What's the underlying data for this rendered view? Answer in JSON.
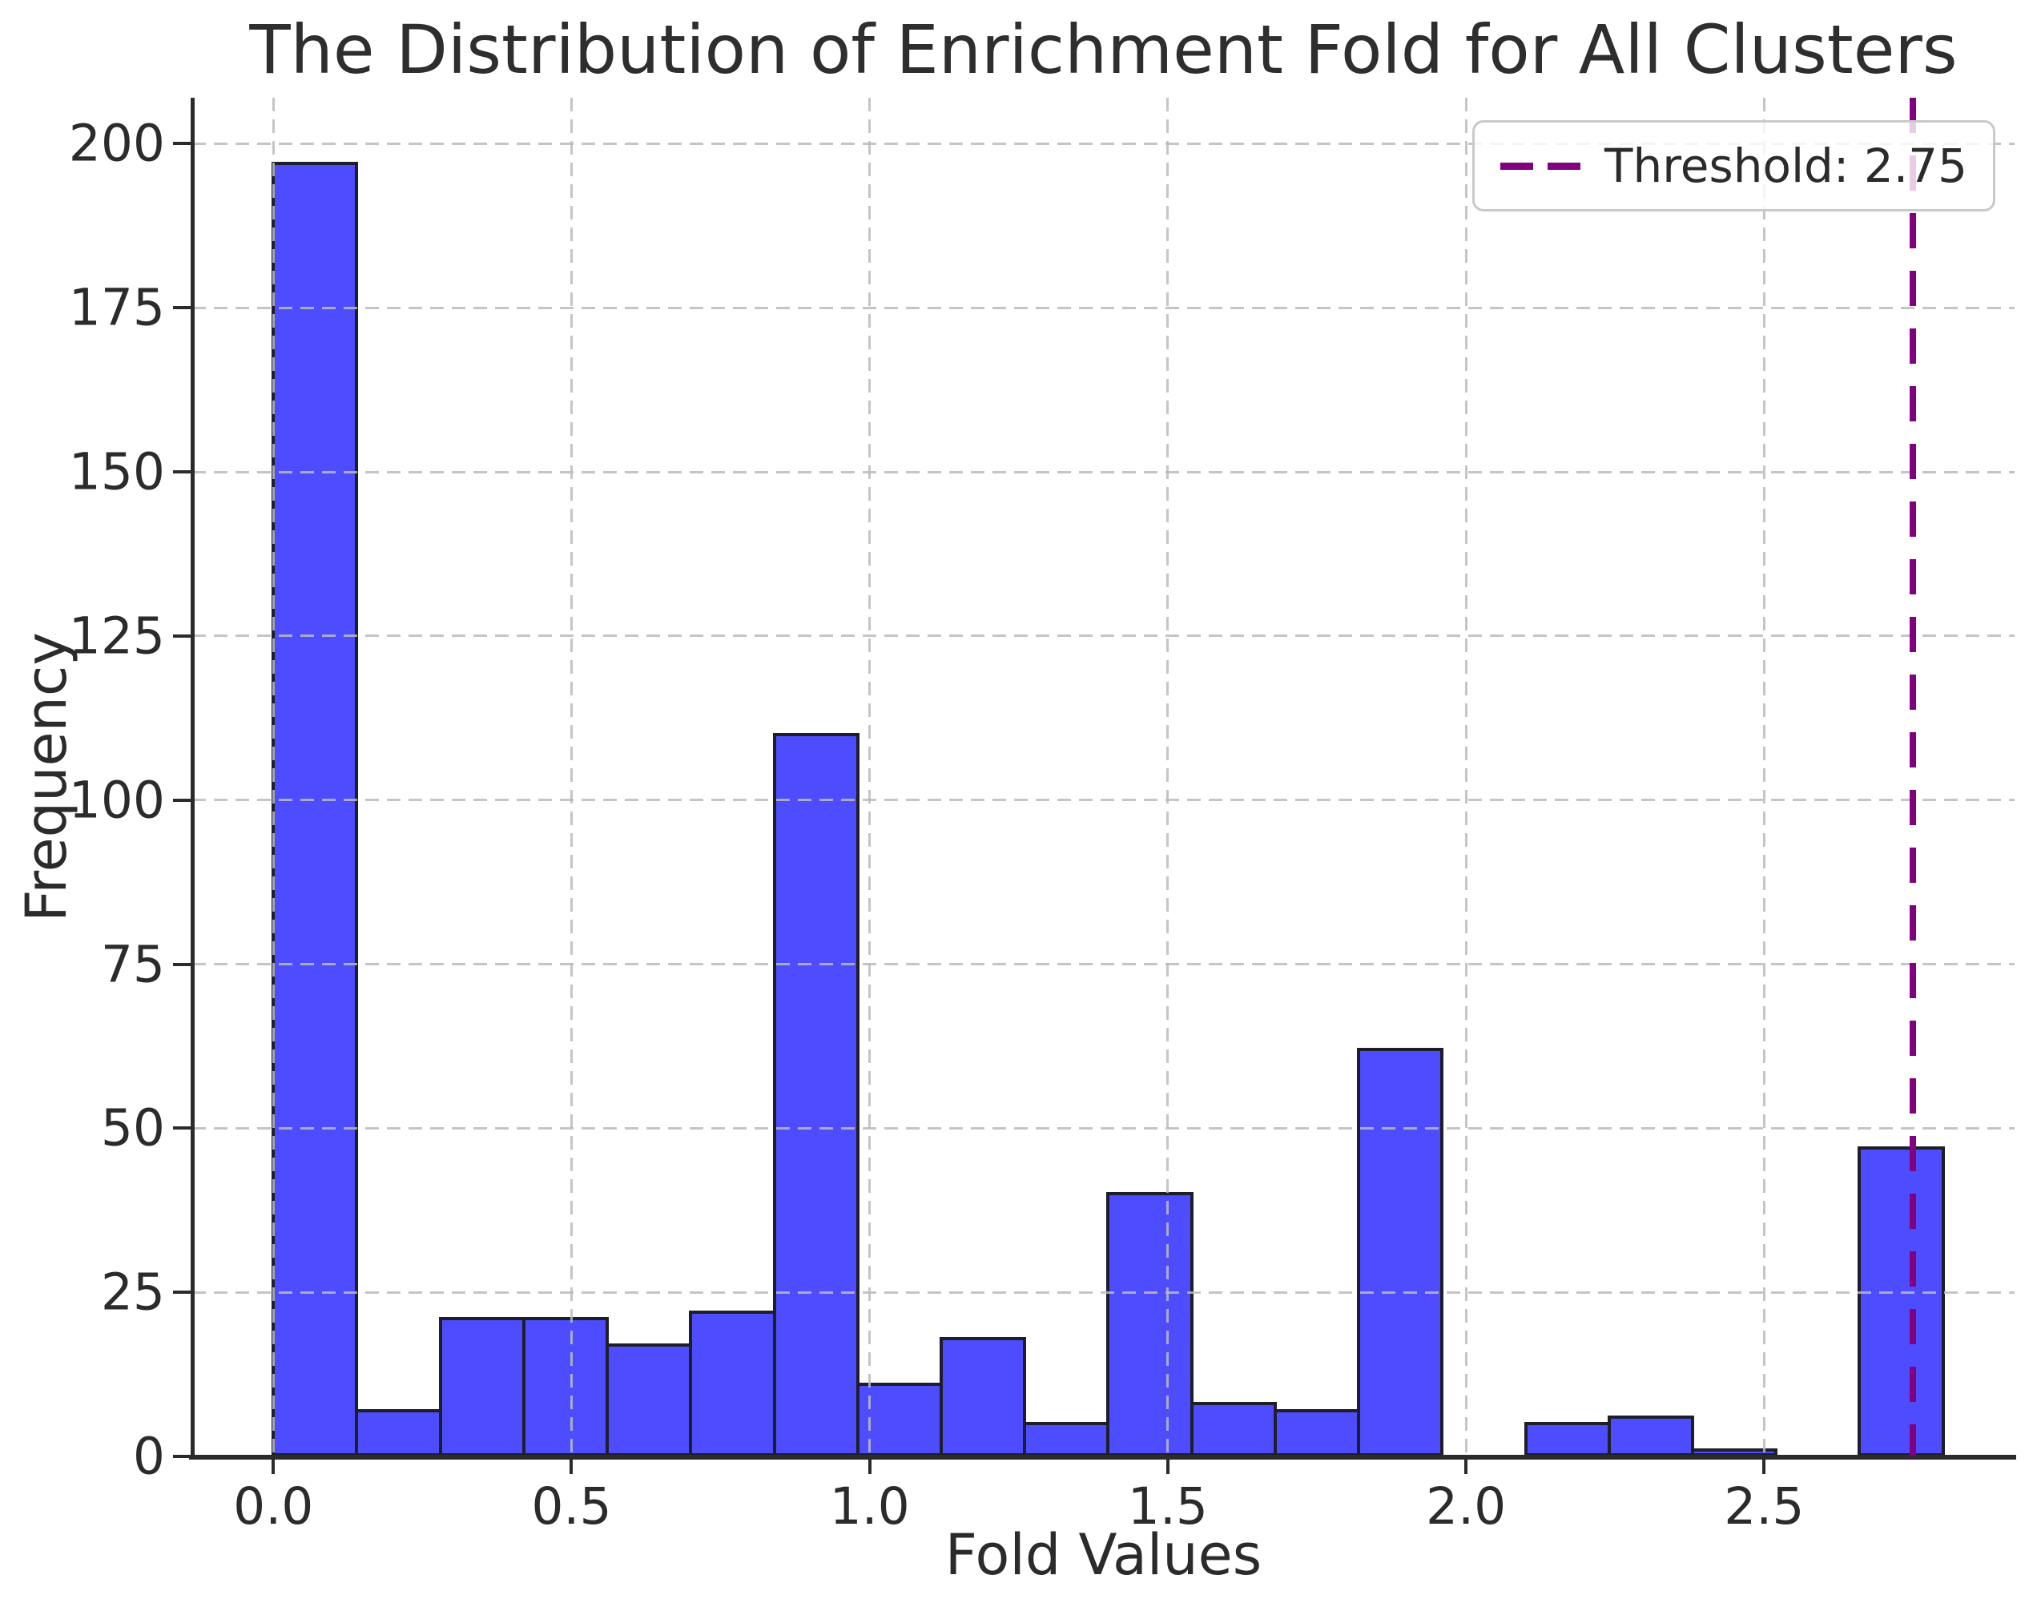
{
  "chart_data": {
    "type": "bar",
    "subtype": "histogram",
    "title": "The Distribution of Enrichment Fold for All Clusters",
    "xlabel": "Fold Values",
    "ylabel": "Frequency",
    "bin_edges": [
      0.0,
      0.14,
      0.28,
      0.42,
      0.56,
      0.7,
      0.84,
      0.98,
      1.12,
      1.26,
      1.4,
      1.54,
      1.68,
      1.82,
      1.96,
      2.1,
      2.24,
      2.38,
      2.52,
      2.66,
      2.8
    ],
    "counts": [
      197,
      7,
      21,
      21,
      17,
      22,
      110,
      11,
      18,
      5,
      40,
      8,
      7,
      62,
      0,
      5,
      6,
      1,
      0,
      47
    ],
    "x_tick_labels": [
      "0.0",
      "0.5",
      "1.0",
      "1.5",
      "2.0",
      "2.5"
    ],
    "x_tick_values": [
      0.0,
      0.5,
      1.0,
      1.5,
      2.0,
      2.5
    ],
    "y_tick_labels": [
      "0",
      "25",
      "50",
      "75",
      "100",
      "125",
      "150",
      "175",
      "200"
    ],
    "y_tick_values": [
      0,
      25,
      50,
      75,
      100,
      125,
      150,
      175,
      200
    ],
    "xlim": [
      -0.136,
      2.92
    ],
    "ylim": [
      0,
      207
    ],
    "grid": true,
    "threshold": 2.75,
    "legend": {
      "label": "Threshold: 2.75",
      "position": "upper right"
    },
    "colors": {
      "bar_fill": "#4D4DFF",
      "bar_edge": "#1E1E28",
      "threshold_line": "#800080",
      "grid": "#BBBBBB",
      "text": "#2B2B2B",
      "spine": "#2B2B2B",
      "legend_border": "#C9C9C9"
    }
  }
}
